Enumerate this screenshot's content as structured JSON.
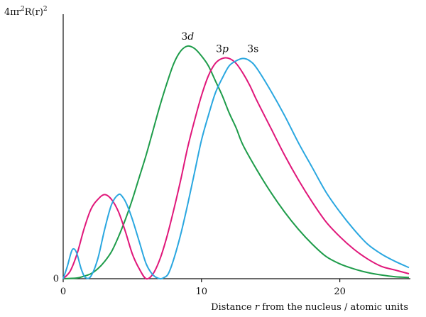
{
  "chart_data": {
    "type": "line",
    "title": "",
    "ylabel": {
      "prefix": "4πr",
      "sup1": "2",
      "mid": "R(r)",
      "sup2": "2"
    },
    "xlabel": {
      "pre": "Distance ",
      "var": "r",
      "post": " from the nucleus / atomic units"
    },
    "xlim": [
      0,
      25
    ],
    "ylim": [
      0,
      1
    ],
    "x_ticks": [
      0,
      10,
      20
    ],
    "y_ticks": [
      0
    ],
    "grid": false,
    "legend": "none",
    "series": [
      {
        "name": "3d",
        "label_num": "3",
        "label_letter": "d",
        "label_italic": true,
        "color": "#1e9c4a",
        "x": [
          0,
          1,
          1.5,
          2,
          2.5,
          3,
          3.5,
          4,
          4.5,
          5,
          5.5,
          6,
          6.5,
          7,
          7.5,
          8,
          8.5,
          9,
          9.5,
          10,
          10.5,
          11,
          11.5,
          12,
          12.5,
          13,
          14,
          15,
          16,
          17,
          18,
          19,
          20,
          21,
          22,
          23,
          24,
          25
        ],
        "y": [
          0,
          0.003,
          0.01,
          0.02,
          0.04,
          0.07,
          0.11,
          0.17,
          0.24,
          0.32,
          0.41,
          0.5,
          0.6,
          0.7,
          0.79,
          0.87,
          0.92,
          0.94,
          0.93,
          0.9,
          0.86,
          0.8,
          0.74,
          0.67,
          0.61,
          0.54,
          0.44,
          0.35,
          0.27,
          0.2,
          0.14,
          0.09,
          0.06,
          0.04,
          0.025,
          0.015,
          0.008,
          0.005
        ]
      },
      {
        "name": "3p",
        "label_num": "3",
        "label_letter": "p",
        "label_italic": true,
        "color": "#e0177a",
        "x": [
          0,
          0.5,
          1,
          1.5,
          2,
          2.5,
          3,
          3.5,
          4,
          4.5,
          5,
          5.5,
          6,
          6.5,
          7,
          7.5,
          8,
          8.5,
          9,
          9.5,
          10,
          10.5,
          11,
          11.5,
          12,
          12.5,
          13,
          13.5,
          14,
          15,
          16,
          17,
          18,
          19,
          20,
          21,
          22,
          23,
          24,
          25
        ],
        "y": [
          0,
          0.03,
          0.1,
          0.2,
          0.28,
          0.32,
          0.34,
          0.32,
          0.27,
          0.19,
          0.1,
          0.04,
          0,
          0.02,
          0.08,
          0.17,
          0.28,
          0.4,
          0.53,
          0.64,
          0.74,
          0.82,
          0.87,
          0.89,
          0.89,
          0.87,
          0.83,
          0.78,
          0.72,
          0.61,
          0.5,
          0.4,
          0.31,
          0.23,
          0.17,
          0.12,
          0.08,
          0.05,
          0.035,
          0.02
        ]
      },
      {
        "name": "3s",
        "label_num": "3s",
        "label_letter": "",
        "label_italic": false,
        "color": "#2aa7e0",
        "x": [
          0,
          0.3,
          0.6,
          0.8,
          1,
          1.3,
          1.6,
          2,
          2.5,
          3,
          3.5,
          4,
          4.3,
          4.6,
          5,
          5.5,
          6,
          6.5,
          7,
          7.3,
          7.6,
          8,
          8.5,
          9,
          9.5,
          10,
          10.5,
          11,
          11.5,
          12,
          12.5,
          13,
          13.5,
          14,
          15,
          16,
          17,
          18,
          19,
          20,
          21,
          22,
          23,
          24,
          25
        ],
        "y": [
          0,
          0.05,
          0.11,
          0.12,
          0.1,
          0.04,
          0.005,
          0.01,
          0.08,
          0.2,
          0.3,
          0.34,
          0.33,
          0.3,
          0.24,
          0.15,
          0.06,
          0.015,
          0,
          0.005,
          0.02,
          0.08,
          0.18,
          0.3,
          0.43,
          0.56,
          0.66,
          0.75,
          0.81,
          0.86,
          0.88,
          0.89,
          0.88,
          0.85,
          0.76,
          0.66,
          0.55,
          0.45,
          0.35,
          0.27,
          0.2,
          0.14,
          0.1,
          0.07,
          0.045
        ]
      }
    ]
  }
}
